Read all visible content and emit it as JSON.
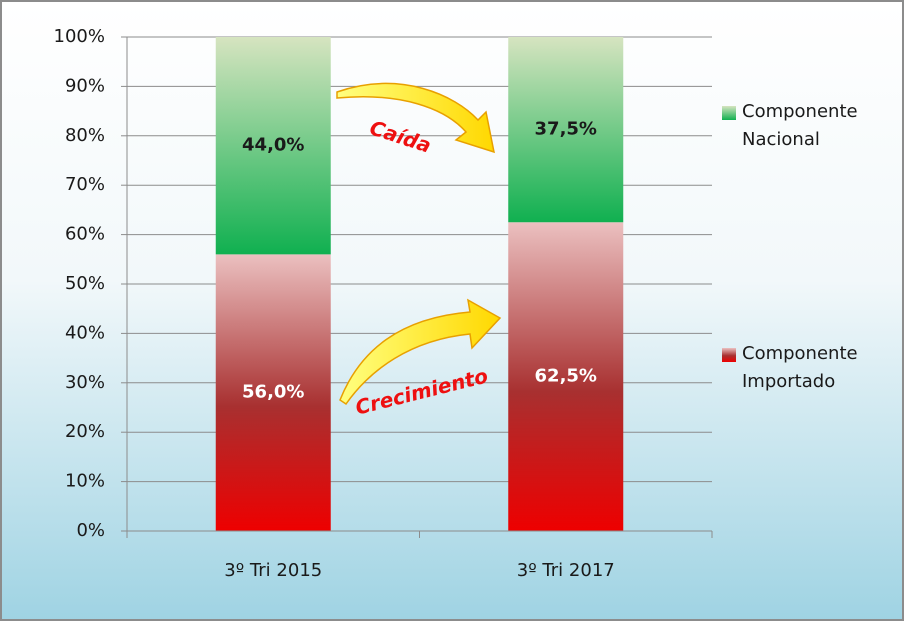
{
  "chart_data": {
    "type": "stacked_bar",
    "categories": [
      "3º Tri 2015",
      "3º Tri 2017"
    ],
    "series": [
      {
        "name": "Componente Importado",
        "color": "#ee0000",
        "top_color": "#ebc0c0",
        "values": [
          56.0,
          62.5
        ],
        "value_labels": [
          "56,0%",
          "62,5%"
        ],
        "label_color": "#ffffff"
      },
      {
        "name": "Componente Nacional",
        "color": "#10b050",
        "top_color": "#d6e4c0",
        "values": [
          44.0,
          37.5
        ],
        "value_labels": [
          "44,0%",
          "37,5%"
        ],
        "label_color": "#1a1a1a"
      }
    ],
    "ylim": [
      0,
      100
    ],
    "yticks": [
      {
        "value": 0,
        "label": "0%"
      },
      {
        "value": 10,
        "label": "10%"
      },
      {
        "value": 20,
        "label": "20%"
      },
      {
        "value": 30,
        "label": "30%"
      },
      {
        "value": 40,
        "label": "40%"
      },
      {
        "value": 50,
        "label": "50%"
      },
      {
        "value": 60,
        "label": "60%"
      },
      {
        "value": 70,
        "label": "70%"
      },
      {
        "value": 80,
        "label": "80%"
      },
      {
        "value": 90,
        "label": "90%"
      },
      {
        "value": 100,
        "label": "100%"
      }
    ],
    "grid": true,
    "legend": "right",
    "annotations": [
      "Caída",
      "Crecimiento"
    ]
  }
}
